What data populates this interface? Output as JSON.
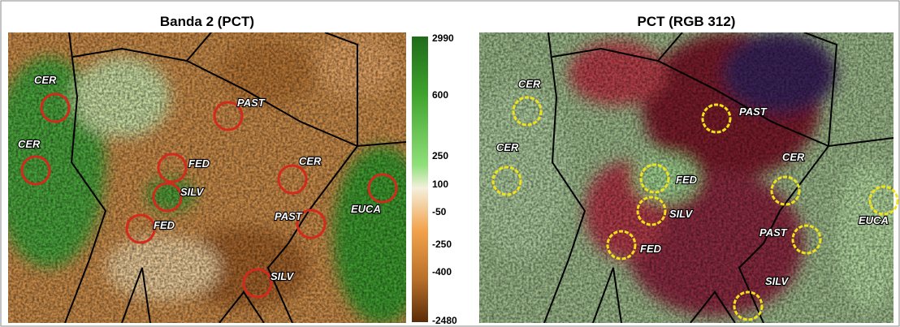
{
  "panels": [
    {
      "title": "Banda 2 (PCT)",
      "labels": [
        "CER",
        "CER",
        "PAST",
        "FED",
        "SILV",
        "FED",
        "CER",
        "PAST",
        "EUCA",
        "SILV"
      ]
    },
    {
      "title": "PCT (RGB 312)",
      "labels": [
        "CER",
        "CER",
        "PAST",
        "FED",
        "SILV",
        "FED",
        "CER",
        "PAST",
        "EUCA",
        "SILV"
      ]
    }
  ],
  "colorbar": {
    "ticks": [
      2990,
      600,
      250,
      100,
      -50,
      -250,
      -400,
      -2480
    ]
  }
}
